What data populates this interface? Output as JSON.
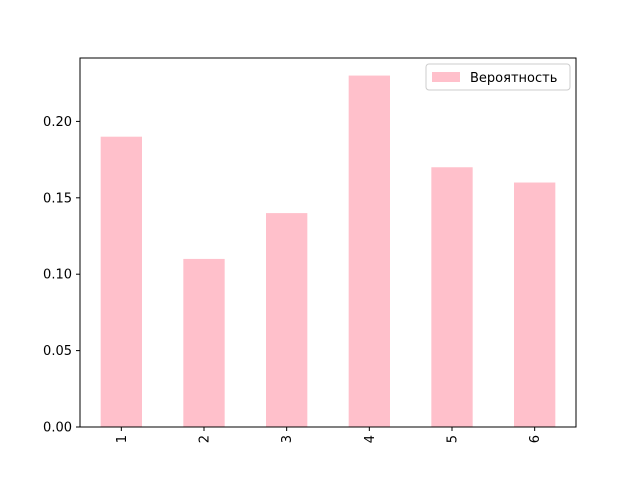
{
  "chart_data": {
    "type": "bar",
    "categories": [
      "1",
      "2",
      "3",
      "4",
      "5",
      "6"
    ],
    "series": [
      {
        "name": "Вероятность",
        "values": [
          0.19,
          0.11,
          0.14,
          0.23,
          0.17,
          0.16
        ],
        "color": "#ffc0cb"
      }
    ],
    "title": "",
    "xlabel": "",
    "ylabel": "",
    "ylim": [
      0,
      0.2415
    ],
    "yticks": [
      0.0,
      0.05,
      0.1,
      0.15,
      0.2
    ],
    "ytick_labels": [
      "0.00",
      "0.05",
      "0.10",
      "0.15",
      "0.20"
    ],
    "xtick_rotation": "vertical",
    "grid": false,
    "legend": {
      "position": "upper-right"
    }
  }
}
